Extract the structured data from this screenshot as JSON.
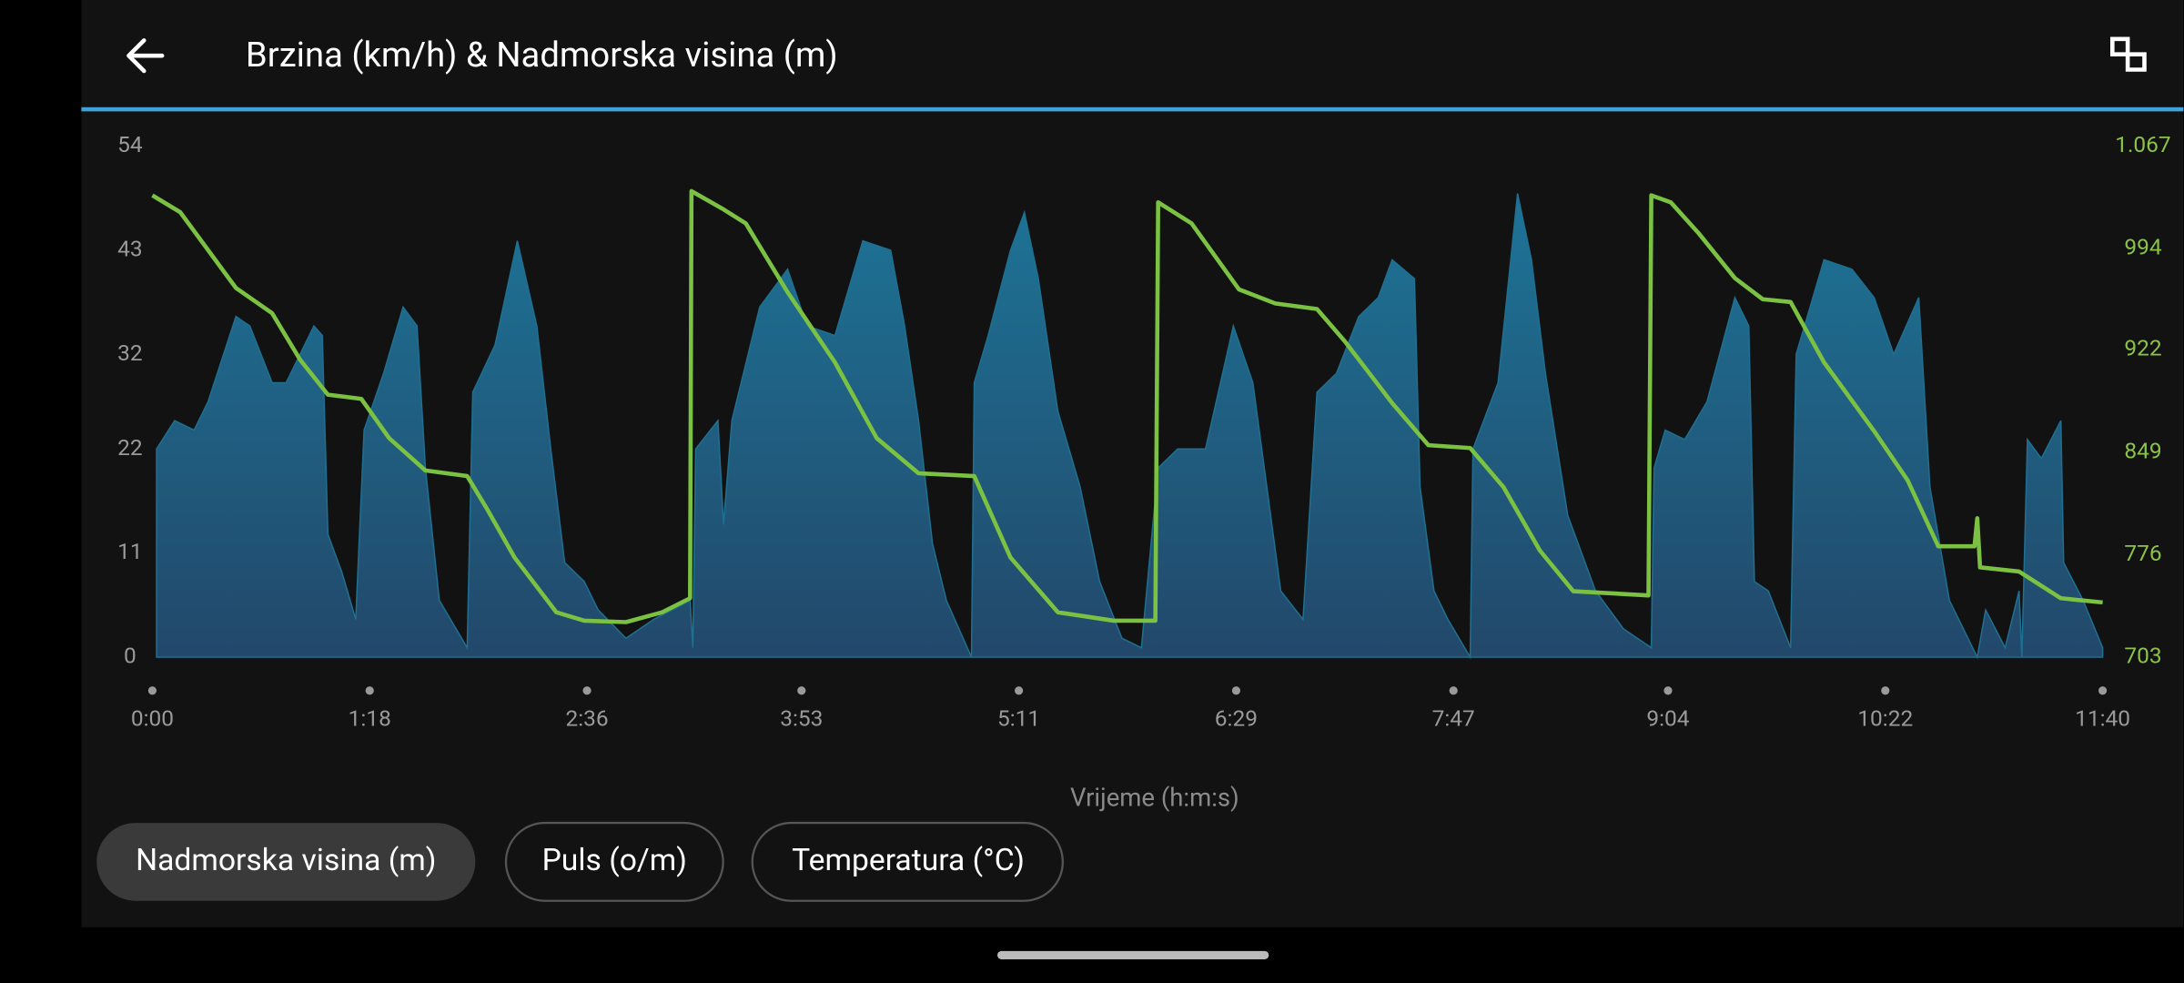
{
  "chart_data": {
    "type": "line",
    "title": "Brzina (km/h) & Nadmorska visina (m)",
    "xlabel": "Vrijeme (h:m:s)",
    "xlim": [
      0,
      700
    ],
    "xticks": [
      {
        "value": 0,
        "label": "0:00"
      },
      {
        "value": 78,
        "label": "1:18"
      },
      {
        "value": 156,
        "label": "2:36"
      },
      {
        "value": 233,
        "label": "3:53"
      },
      {
        "value": 311,
        "label": "5:11"
      },
      {
        "value": 389,
        "label": "6:29"
      },
      {
        "value": 467,
        "label": "7:47"
      },
      {
        "value": 544,
        "label": "9:04"
      },
      {
        "value": 622,
        "label": "10:22"
      },
      {
        "value": 700,
        "label": "11:40"
      }
    ],
    "ylim": [
      0,
      54
    ],
    "yticks": [
      0,
      11,
      22,
      32,
      43,
      54
    ],
    "y2lim": [
      703,
      1067
    ],
    "y2ticks": [
      703,
      776,
      849,
      922,
      994,
      {
        "value": 1067,
        "label": "1.067"
      }
    ],
    "series": [
      {
        "type": "area",
        "color": "#1f6f90",
        "x": [
          1.5,
          8,
          15,
          20,
          30,
          35,
          43,
          48,
          53,
          58,
          61,
          63,
          68,
          73,
          76,
          83,
          90,
          95,
          98,
          103,
          113,
          115,
          123,
          131,
          138,
          143,
          148,
          155,
          160,
          170,
          180,
          193,
          194,
          195,
          203,
          205,
          208,
          218,
          228,
          235,
          245,
          255,
          265,
          270,
          275,
          280,
          285,
          294,
          295,
          300,
          308,
          313,
          318,
          325,
          333,
          340,
          348,
          355,
          361,
          368,
          378,
          388,
          395,
          400,
          405,
          413,
          418,
          425,
          433,
          440,
          445,
          453,
          455,
          460,
          465,
          473,
          474,
          483,
          490,
          495,
          500,
          508,
          518,
          528,
          538,
          539,
          543,
          550,
          558,
          568,
          573,
          575,
          580,
          588,
          590,
          600,
          610,
          618,
          625,
          634,
          638,
          645,
          655,
          658,
          665,
          670,
          671,
          673,
          678,
          685,
          686,
          693,
          700
        ],
        "values": [
          22,
          25,
          24,
          27,
          36,
          35,
          29,
          29,
          32,
          35,
          34,
          13,
          9,
          4,
          24,
          30,
          37,
          35,
          20,
          6,
          1,
          28,
          33,
          44,
          35,
          22,
          10,
          8,
          5,
          2,
          4,
          6,
          1,
          22,
          25,
          14,
          25,
          37,
          41,
          35,
          34,
          44,
          43,
          35,
          25,
          12,
          6,
          0,
          29,
          34,
          43,
          47,
          40,
          26,
          18,
          8,
          2,
          1,
          20,
          22,
          22,
          35,
          29,
          18,
          7,
          4,
          28,
          30,
          36,
          38,
          42,
          40,
          18,
          7,
          4,
          0,
          22,
          29,
          49,
          42,
          30,
          15,
          7,
          3,
          1,
          20,
          24,
          23,
          27,
          38,
          35,
          8,
          7,
          1,
          32,
          42,
          41,
          38,
          32,
          38,
          18,
          6,
          0,
          5,
          1,
          7,
          0,
          23,
          21,
          25,
          10,
          6,
          1
        ]
      },
      {
        "type": "line",
        "color": "#7cc242",
        "axis": "y2",
        "x": [
          0,
          10,
          20,
          30,
          43,
          53,
          63,
          75,
          85,
          98,
          113,
          120,
          130,
          145,
          155,
          170,
          183,
          193,
          193.5,
          205,
          213,
          228,
          245,
          260,
          275,
          295,
          308,
          325,
          345,
          360,
          361,
          373,
          390,
          403,
          418,
          428,
          445,
          458,
          473,
          485,
          498,
          510,
          537,
          538,
          545,
          555,
          568,
          578,
          588,
          600,
          618,
          630,
          641,
          654,
          655,
          656,
          670,
          685,
          700
        ],
        "values": [
          1032,
          1020,
          993,
          966,
          948,
          915,
          890,
          887,
          859,
          836,
          832,
          809,
          774,
          735,
          729,
          728,
          735,
          745,
          1035,
          1022,
          1012,
          963,
          913,
          859,
          834,
          832,
          774,
          735,
          729,
          729,
          1027,
          1012,
          965,
          955,
          951,
          928,
          884,
          854,
          852,
          824,
          779,
          750,
          747,
          1032,
          1027,
          1005,
          973,
          958,
          956,
          913,
          864,
          829,
          782,
          782,
          802,
          767,
          764,
          745,
          742
        ]
      }
    ]
  },
  "buttons": [
    "Nadmorska visina (m)",
    "Puls (o/m)",
    "Temperatura (°C)"
  ]
}
